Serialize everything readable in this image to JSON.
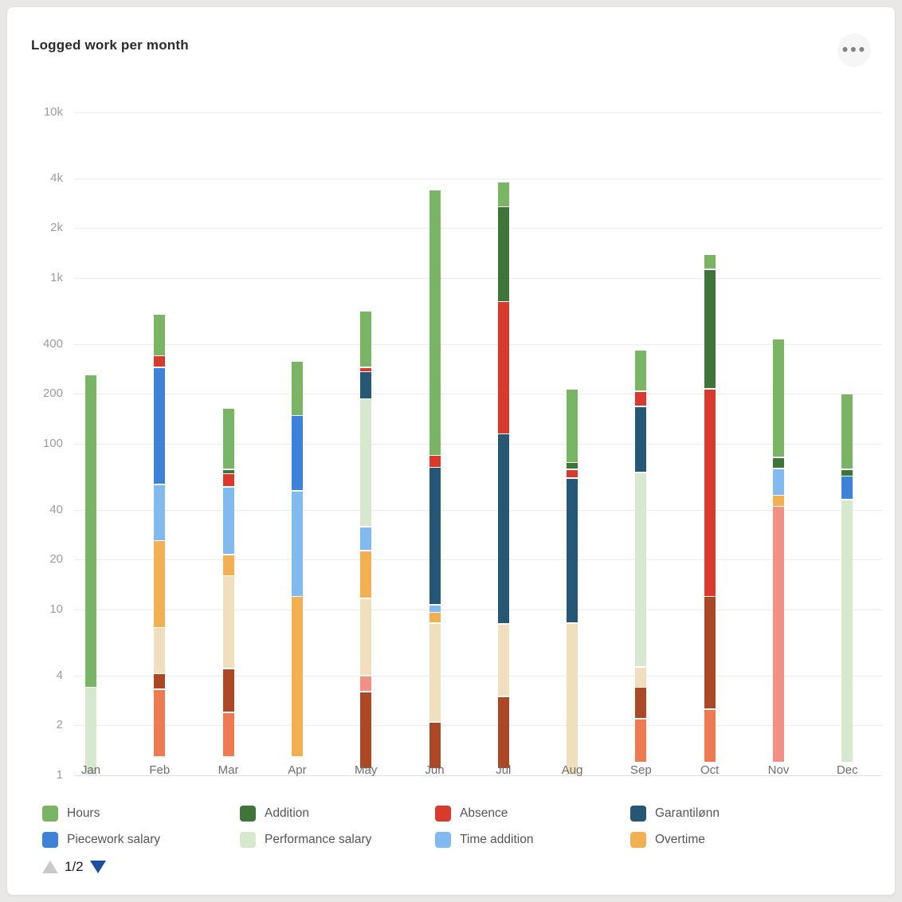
{
  "header": {
    "title": "Logged work per month",
    "menu_icon": "ellipsis"
  },
  "legend": {
    "page": "1/2",
    "items": [
      {
        "key": "hours",
        "label": "Hours",
        "row": 0,
        "col": 0
      },
      {
        "key": "addition",
        "label": "Addition",
        "row": 0,
        "col": 1
      },
      {
        "key": "absence",
        "label": "Absence",
        "row": 0,
        "col": 2
      },
      {
        "key": "garantilonn",
        "label": "Garantilønn",
        "row": 0,
        "col": 3
      },
      {
        "key": "piecework",
        "label": "Piecework salary",
        "row": 1,
        "col": 0
      },
      {
        "key": "performance",
        "label": "Performance salary",
        "row": 1,
        "col": 1
      },
      {
        "key": "time_addition",
        "label": "Time addition",
        "row": 1,
        "col": 2
      },
      {
        "key": "overtime",
        "label": "Overtime",
        "row": 1,
        "col": 3
      }
    ]
  },
  "chart_data": {
    "type": "bar",
    "stacking": "stacked",
    "y_scale": "log",
    "title": "Logged work per month",
    "ylim": [
      1,
      10000
    ],
    "grid": true,
    "legend_position": "bottom",
    "categories": [
      "Jan",
      "Feb",
      "Mar",
      "Apr",
      "May",
      "Jun",
      "Jul",
      "Aug",
      "Sep",
      "Oct",
      "Nov",
      "Dec"
    ],
    "y_ticks": [
      {
        "label": "10k",
        "value": 10000
      },
      {
        "label": "4k",
        "value": 4000
      },
      {
        "label": "2k",
        "value": 2000
      },
      {
        "label": "1k",
        "value": 1000
      },
      {
        "label": "400",
        "value": 400
      },
      {
        "label": "200",
        "value": 200
      },
      {
        "label": "100",
        "value": 100
      },
      {
        "label": "40",
        "value": 40
      },
      {
        "label": "20",
        "value": 20
      },
      {
        "label": "10",
        "value": 10
      },
      {
        "label": "4",
        "value": 4
      },
      {
        "label": "2",
        "value": 2
      },
      {
        "label": "1",
        "value": 1
      }
    ],
    "series_colors": {
      "hours": "#7ab465",
      "addition": "#3f7538",
      "absence": "#d83b2e",
      "garantilonn": "#265875",
      "piecework": "#3d82d8",
      "performance": "#d6e8cd",
      "time_addition": "#80baee",
      "overtime": "#f2b052",
      "coral": "#ed7a50",
      "rust": "#ab4926",
      "salmon": "#f09184",
      "beige": "#efdfbc"
    },
    "months": [
      {
        "name": "Jan",
        "segments": [
          [
            "performance",
            1,
            3.4
          ],
          [
            "hours",
            3.4,
            260
          ]
        ]
      },
      {
        "name": "Feb",
        "segments": [
          [
            "coral",
            1.3,
            3.3
          ],
          [
            "rust",
            3.3,
            4.1
          ],
          [
            "beige",
            4.1,
            7.8
          ],
          [
            "overtime",
            7.8,
            26
          ],
          [
            "time_addition",
            26,
            57
          ],
          [
            "piecework",
            57,
            290
          ],
          [
            "absence",
            290,
            340
          ],
          [
            "hours",
            340,
            605
          ]
        ]
      },
      {
        "name": "Mar",
        "segments": [
          [
            "coral",
            1.3,
            2.4
          ],
          [
            "rust",
            2.4,
            4.4
          ],
          [
            "beige",
            4.4,
            16
          ],
          [
            "overtime",
            16,
            21.5
          ],
          [
            "time_addition",
            21.5,
            55
          ],
          [
            "absence",
            55,
            66
          ],
          [
            "addition",
            66,
            70
          ],
          [
            "hours",
            70,
            165
          ]
        ]
      },
      {
        "name": "Apr",
        "segments": [
          [
            "overtime",
            1.3,
            12
          ],
          [
            "time_addition",
            12,
            52
          ],
          [
            "piecework",
            52,
            148
          ],
          [
            "hours",
            148,
            315
          ]
        ]
      },
      {
        "name": "May",
        "segments": [
          [
            "rust",
            1.1,
            3.2
          ],
          [
            "salmon",
            3.2,
            4.0
          ],
          [
            "beige",
            4.0,
            11.7
          ],
          [
            "overtime",
            11.7,
            22.7
          ],
          [
            "time_addition",
            22.7,
            31.6
          ],
          [
            "performance",
            31.6,
            187
          ],
          [
            "garantilonn",
            187,
            272
          ],
          [
            "absence",
            272,
            290
          ],
          [
            "hours",
            290,
            630
          ]
        ]
      },
      {
        "name": "Jun",
        "segments": [
          [
            "rust",
            1.1,
            2.1
          ],
          [
            "beige",
            2.1,
            8.3
          ],
          [
            "overtime",
            8.3,
            9.6
          ],
          [
            "time_addition",
            9.6,
            10.7
          ],
          [
            "garantilonn",
            10.7,
            72
          ],
          [
            "absence",
            72,
            85
          ],
          [
            "hours",
            85,
            3400
          ]
        ]
      },
      {
        "name": "Jul",
        "segments": [
          [
            "rust",
            1.1,
            3.0
          ],
          [
            "beige",
            3.0,
            8.2
          ],
          [
            "garantilonn",
            8.2,
            115
          ],
          [
            "absence",
            115,
            720
          ],
          [
            "addition",
            720,
            2700
          ],
          [
            "hours",
            2700,
            3800
          ]
        ]
      },
      {
        "name": "Aug",
        "segments": [
          [
            "beige",
            1,
            8.3
          ],
          [
            "garantilonn",
            8.3,
            62
          ],
          [
            "absence",
            62,
            70
          ],
          [
            "addition",
            70,
            77
          ],
          [
            "hours",
            77,
            215
          ]
        ]
      },
      {
        "name": "Sep",
        "segments": [
          [
            "coral",
            1.2,
            2.2
          ],
          [
            "rust",
            2.2,
            3.4
          ],
          [
            "beige",
            3.4,
            4.5
          ],
          [
            "performance",
            4.5,
            67
          ],
          [
            "garantilonn",
            67,
            168
          ],
          [
            "absence",
            168,
            208
          ],
          [
            "hours",
            208,
            370
          ]
        ]
      },
      {
        "name": "Oct",
        "segments": [
          [
            "coral",
            1.2,
            2.5
          ],
          [
            "rust",
            2.5,
            12
          ],
          [
            "absence",
            12,
            215
          ],
          [
            "addition",
            215,
            1130
          ],
          [
            "hours",
            1130,
            1390
          ]
        ]
      },
      {
        "name": "Nov",
        "segments": [
          [
            "salmon",
            1.2,
            42
          ],
          [
            "overtime",
            42,
            49
          ],
          [
            "time_addition",
            49,
            71
          ],
          [
            "addition",
            71,
            83
          ],
          [
            "hours",
            83,
            430
          ]
        ]
      },
      {
        "name": "Dec",
        "segments": [
          [
            "performance",
            1.2,
            46
          ],
          [
            "piecework",
            46,
            64
          ],
          [
            "addition",
            64,
            70
          ],
          [
            "hours",
            70,
            200
          ]
        ]
      }
    ]
  }
}
